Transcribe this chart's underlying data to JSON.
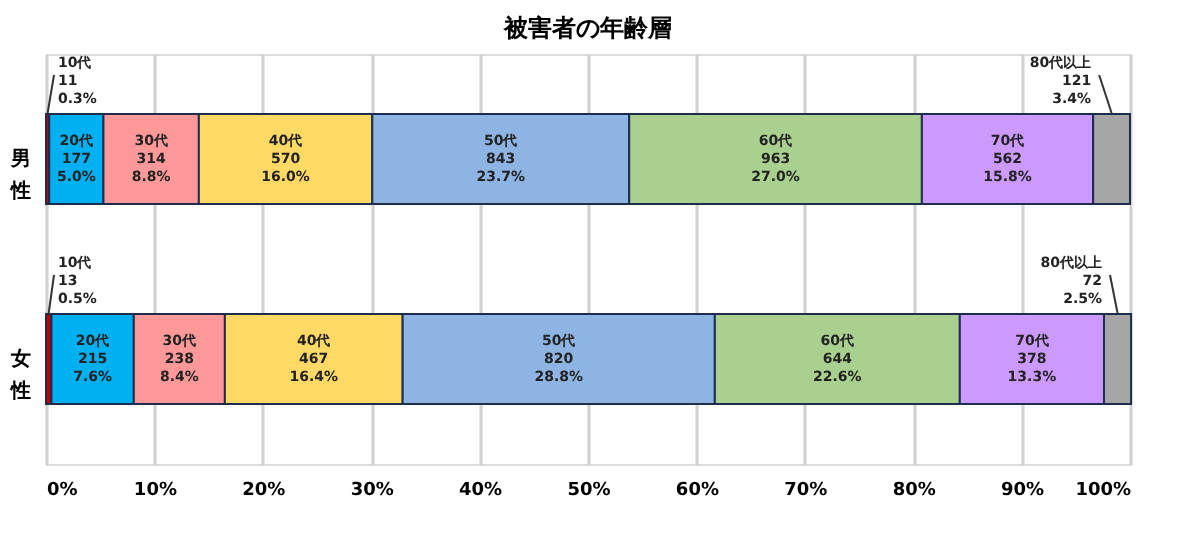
{
  "chart_data": {
    "type": "bar",
    "title": "被害者の年齢層",
    "orientation": "horizontal",
    "stacked": true,
    "categories": [
      "男性",
      "女性"
    ],
    "series": [
      {
        "name": "10代",
        "color": "#c00000",
        "values": [
          0.3,
          0.5
        ],
        "value_labels": [
          "11\n0.3%",
          "13\n0.5%"
        ]
      },
      {
        "name": "20代",
        "color": "#00b0f0",
        "values": [
          5.0,
          7.6
        ],
        "value_labels": [
          "177\n5.0%",
          "215\n7.6%"
        ]
      },
      {
        "name": "30代",
        "color": "#ff9999",
        "values": [
          8.8,
          8.4
        ],
        "value_labels": [
          "314\n8.8%",
          "238\n8.4%"
        ]
      },
      {
        "name": "40代",
        "color": "#ffd966",
        "values": [
          16.0,
          16.4
        ],
        "value_labels": [
          "570\n16.0%",
          "467\n16.4%"
        ]
      },
      {
        "name": "50代",
        "color": "#8db4e2",
        "values": [
          23.7,
          28.8
        ],
        "value_labels": [
          "843\n23.7%",
          "820\n28.8%"
        ]
      },
      {
        "name": "60代",
        "color": "#a9d08e",
        "values": [
          27.0,
          22.6
        ],
        "value_labels": [
          "963\n27.0%",
          "644\n22.6%"
        ]
      },
      {
        "name": "70代",
        "color": "#cc99ff",
        "values": [
          15.8,
          13.3
        ],
        "value_labels": [
          "562\n15.8%",
          "378\n13.3%"
        ]
      },
      {
        "name": "80代以上",
        "color": "#a6a6a6",
        "values": [
          3.4,
          2.5
        ],
        "value_labels": [
          "121\n3.4%",
          "72\n2.5%"
        ]
      }
    ],
    "xlim": [
      0,
      100
    ],
    "xticks": [
      {
        "value": 0,
        "label": "0%"
      },
      {
        "value": 10,
        "label": "10%"
      },
      {
        "value": 20,
        "label": "20%"
      },
      {
        "value": 30,
        "label": "30%"
      },
      {
        "value": 40,
        "label": "40%"
      },
      {
        "value": 50,
        "label": "50%"
      },
      {
        "value": 60,
        "label": "60%"
      },
      {
        "value": 70,
        "label": "70%"
      },
      {
        "value": 80,
        "label": "80%"
      },
      {
        "value": 90,
        "label": "90%"
      },
      {
        "value": 100,
        "label": "100%"
      }
    ],
    "grid": "x",
    "legend": false
  }
}
